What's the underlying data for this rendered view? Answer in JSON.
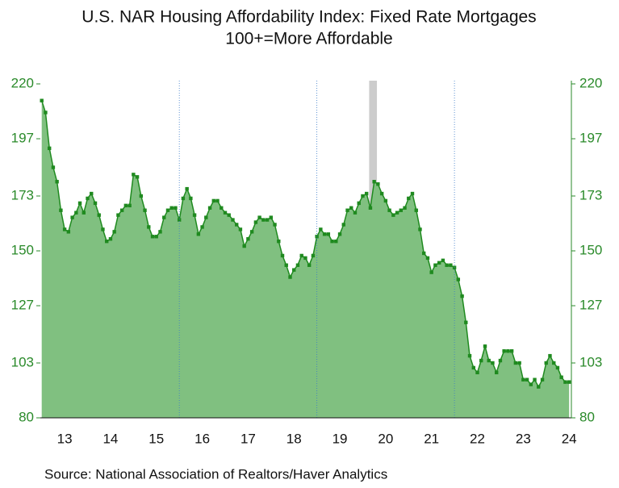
{
  "chart_data": {
    "type": "area",
    "title": "U.S. NAR Housing Affordability Index: Fixed Rate Mortgages",
    "subtitle": "100+=More Affordable",
    "source": "Source:  National Association of Realtors/Haver Analytics",
    "x": [
      2013.0,
      2013.083,
      2013.167,
      2013.25,
      2013.333,
      2013.417,
      2013.5,
      2013.583,
      2013.667,
      2013.75,
      2013.833,
      2013.917,
      2014.0,
      2014.083,
      2014.167,
      2014.25,
      2014.333,
      2014.417,
      2014.5,
      2014.583,
      2014.667,
      2014.75,
      2014.833,
      2014.917,
      2015.0,
      2015.083,
      2015.167,
      2015.25,
      2015.333,
      2015.417,
      2015.5,
      2015.583,
      2015.667,
      2015.75,
      2015.833,
      2015.917,
      2016.0,
      2016.083,
      2016.167,
      2016.25,
      2016.333,
      2016.417,
      2016.5,
      2016.583,
      2016.667,
      2016.75,
      2016.833,
      2016.917,
      2017.0,
      2017.083,
      2017.167,
      2017.25,
      2017.333,
      2017.417,
      2017.5,
      2017.583,
      2017.667,
      2017.75,
      2017.833,
      2017.917,
      2018.0,
      2018.083,
      2018.167,
      2018.25,
      2018.333,
      2018.417,
      2018.5,
      2018.583,
      2018.667,
      2018.75,
      2018.833,
      2018.917,
      2019.0,
      2019.083,
      2019.167,
      2019.25,
      2019.333,
      2019.417,
      2019.5,
      2019.583,
      2019.667,
      2019.75,
      2019.833,
      2019.917,
      2020.0,
      2020.083,
      2020.167,
      2020.25,
      2020.333,
      2020.417,
      2020.5,
      2020.583,
      2020.667,
      2020.75,
      2020.833,
      2020.917,
      2021.0,
      2021.083,
      2021.167,
      2021.25,
      2021.333,
      2021.417,
      2021.5,
      2021.583,
      2021.667,
      2021.75,
      2021.833,
      2021.917,
      2022.0,
      2022.083,
      2022.167,
      2022.25,
      2022.333,
      2022.417,
      2022.5,
      2022.583,
      2022.667,
      2022.75,
      2022.833,
      2022.917,
      2023.0,
      2023.083,
      2023.167,
      2023.25,
      2023.333,
      2023.417,
      2023.5,
      2023.583,
      2023.667,
      2023.75,
      2023.833,
      2023.917,
      2024.0,
      2024.083,
      2024.167,
      2024.25,
      2024.333,
      2024.417,
      2024.5
    ],
    "series": [
      {
        "name": "Housing Affordability Index",
        "color": "#1f8a1f",
        "fill": "#80c080",
        "values": [
          213,
          208,
          193,
          185,
          179,
          167,
          159,
          158,
          164,
          166,
          170,
          166,
          172,
          174,
          170,
          165,
          159,
          154,
          155,
          158,
          165,
          167,
          169,
          169,
          182,
          181,
          173,
          167,
          160,
          156,
          156,
          158,
          164,
          167,
          168,
          168,
          163,
          172,
          176,
          172,
          165,
          157,
          160,
          164,
          168,
          171,
          171,
          168,
          166,
          165,
          163,
          161,
          159,
          152,
          155,
          158,
          162,
          164,
          163,
          163,
          164,
          161,
          154,
          148,
          144,
          139,
          142,
          144,
          148,
          147,
          144,
          148,
          156,
          159,
          157,
          157,
          154,
          154,
          157,
          161,
          167,
          168,
          166,
          170,
          173,
          174,
          168,
          179,
          178,
          174,
          171,
          167,
          165,
          166,
          167,
          168,
          172,
          174,
          167,
          159,
          149,
          147,
          141,
          144,
          145,
          146,
          144,
          144,
          143,
          138,
          131,
          120,
          106,
          101,
          99,
          104,
          110,
          104,
          103,
          99,
          104,
          108,
          108,
          108,
          103,
          103,
          96,
          96,
          94,
          96,
          93,
          96,
          103,
          106,
          103,
          101,
          97,
          95,
          95
        ]
      }
    ],
    "shade": [
      2020.14,
      2020.31
    ],
    "xlim": [
      2012.97,
      2024.55
    ],
    "xticks": [
      {
        "value": 2013.5,
        "label": "13"
      },
      {
        "value": 2014.5,
        "label": "14"
      },
      {
        "value": 2015.5,
        "label": "15"
      },
      {
        "value": 2016.5,
        "label": "16"
      },
      {
        "value": 2017.5,
        "label": "17"
      },
      {
        "value": 2018.5,
        "label": "18"
      },
      {
        "value": 2019.5,
        "label": "19"
      },
      {
        "value": 2020.5,
        "label": "20"
      },
      {
        "value": 2021.5,
        "label": "21"
      },
      {
        "value": 2022.5,
        "label": "22"
      },
      {
        "value": 2023.5,
        "label": "23"
      },
      {
        "value": 2024.5,
        "label": "24"
      }
    ],
    "xgrid": [
      2016,
      2019,
      2022
    ],
    "ylim": [
      80,
      220
    ],
    "yticks": [
      80,
      103,
      127,
      150,
      173,
      197,
      220
    ]
  }
}
